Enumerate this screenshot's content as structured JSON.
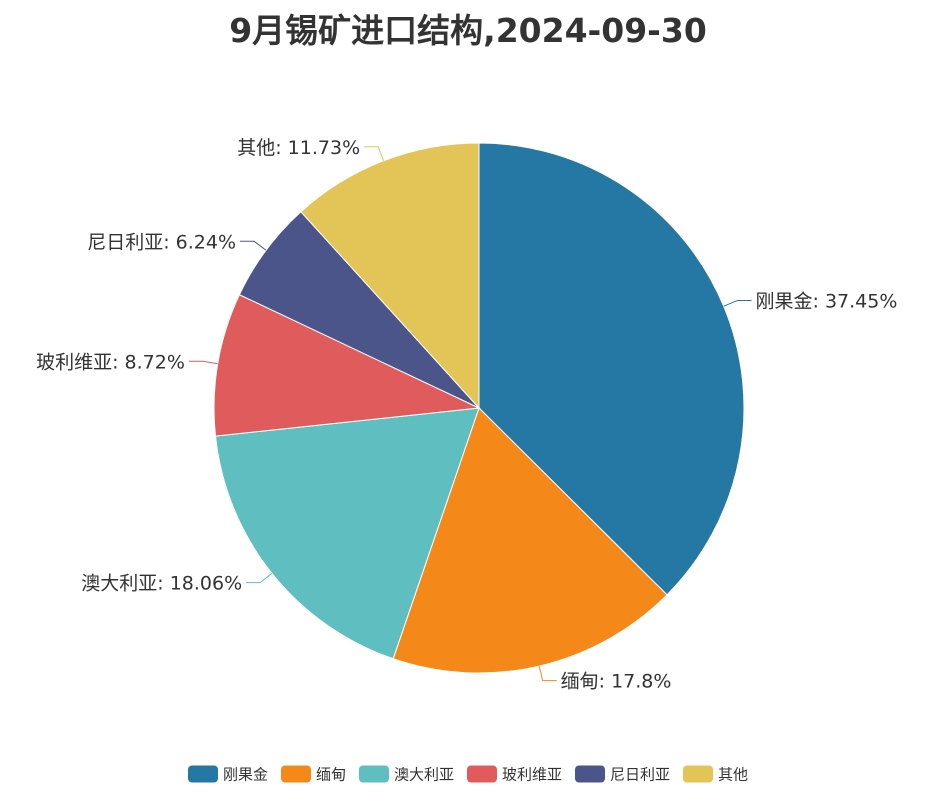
{
  "chart_data": {
    "type": "pie",
    "title": "9月锡矿进口结构,2024-09-30",
    "slices": [
      {
        "name": "刚果金",
        "value": 37.45,
        "label": "刚果金: 37.45%",
        "color": "#2577a4"
      },
      {
        "name": "缅甸",
        "value": 17.8,
        "label": "缅甸: 17.8%",
        "color": "#f48819"
      },
      {
        "name": "澳大利亚",
        "value": 18.06,
        "label": "澳大利亚: 18.06%",
        "color": "#5ebec0"
      },
      {
        "name": "玻利维亚",
        "value": 8.72,
        "label": "玻利维亚: 8.72%",
        "color": "#e05c5c"
      },
      {
        "name": "尼日利亚",
        "value": 6.24,
        "label": "尼日利亚: 6.24%",
        "color": "#4b558a"
      },
      {
        "name": "其他",
        "value": 11.73,
        "label": "其他: 11.73%",
        "color": "#e3c456"
      }
    ],
    "legend_position": "bottom-center",
    "start_angle": "top, clockwise"
  }
}
